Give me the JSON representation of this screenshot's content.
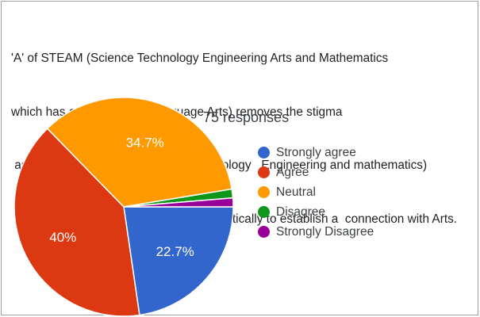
{
  "question_lines": [
    "'A' of STEAM (Science Technology Engineering Arts and Mathematics",
    "which has component  of Language Arts) removes the stigma",
    " associated with STEM (Science Technology   Engineering and mathematics)",
    " Education by  addressing concepts holistically to establish a  connection with Arts."
  ],
  "chart_data": {
    "type": "pie",
    "responses_label": "75 responses",
    "slices": [
      {
        "name": "Strongly agree",
        "value": 22.7,
        "label": "22.7%",
        "color": "#3366cc"
      },
      {
        "name": "Agree",
        "value": 40.0,
        "label": "40%",
        "color": "#dc3912"
      },
      {
        "name": "Neutral",
        "value": 34.7,
        "label": "34.7%",
        "color": "#ff9900"
      },
      {
        "name": "Disagree",
        "value": 1.3,
        "label": "",
        "color": "#109618"
      },
      {
        "name": "Strongly Disagree",
        "value": 1.3,
        "label": "",
        "color": "#990099"
      }
    ],
    "legend_position": "right"
  }
}
